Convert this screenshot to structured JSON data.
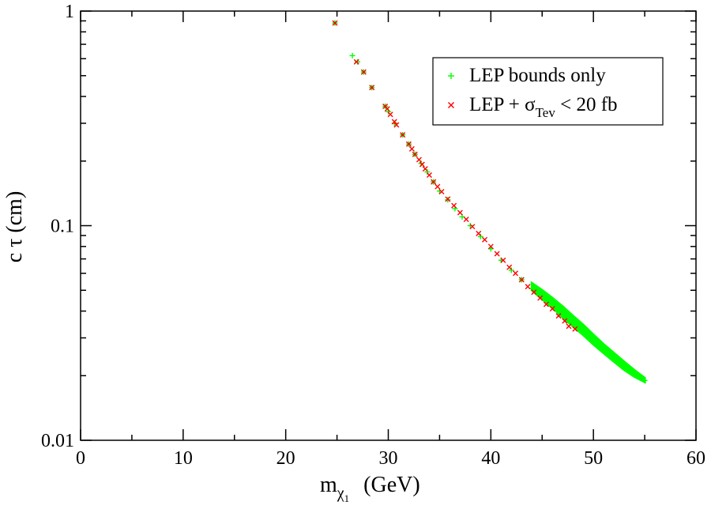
{
  "chart_data": {
    "type": "scatter",
    "title": "",
    "xlabel": {
      "symbol": "m",
      "sub": "χ",
      "subsub": "1",
      "units": "(GeV)"
    },
    "ylabel": "c τ  (cm)",
    "xlim": [
      0,
      60
    ],
    "ylim": [
      0.01,
      1
    ],
    "yscale": "log",
    "x_ticks": [
      0,
      10,
      20,
      30,
      40,
      50,
      60
    ],
    "x_tick_labels": [
      "0",
      "10",
      "20",
      "30",
      "40",
      "50",
      "60"
    ],
    "y_ticks": [
      0.01,
      0.1,
      1
    ],
    "y_tick_labels": [
      "0.01",
      "0.1",
      "1"
    ],
    "legend_position": "top-right",
    "colors": {
      "lep": "#00ff00",
      "tev": "#ff0000",
      "tev_stroke": "#8b1a1a"
    },
    "series": [
      {
        "name": "LEP bounds only",
        "marker": "plus",
        "color": "#00ff00",
        "points": [
          [
            24.8,
            0.88
          ],
          [
            26.5,
            0.62
          ],
          [
            27.0,
            0.58
          ],
          [
            27.6,
            0.52
          ],
          [
            28.4,
            0.44
          ],
          [
            29.7,
            0.36
          ],
          [
            30.0,
            0.34
          ],
          [
            30.6,
            0.3
          ],
          [
            31.4,
            0.265
          ],
          [
            32.0,
            0.24
          ],
          [
            32.6,
            0.215
          ],
          [
            33.2,
            0.195
          ],
          [
            33.8,
            0.178
          ],
          [
            34.4,
            0.16
          ],
          [
            35.0,
            0.145
          ],
          [
            35.8,
            0.132
          ],
          [
            36.5,
            0.12
          ],
          [
            37.2,
            0.11
          ],
          [
            38.0,
            0.1
          ],
          [
            39.0,
            0.089
          ],
          [
            40.0,
            0.078
          ],
          [
            41.0,
            0.069
          ],
          [
            42.0,
            0.062
          ],
          [
            43.0,
            0.056
          ],
          [
            44.0,
            0.051
          ],
          [
            45.0,
            0.046
          ],
          [
            46.0,
            0.042
          ],
          [
            47.0,
            0.038
          ],
          [
            48.0,
            0.035
          ],
          [
            49.0,
            0.032
          ],
          [
            50.0,
            0.029
          ],
          [
            51.0,
            0.0265
          ],
          [
            52.0,
            0.0243
          ],
          [
            53.0,
            0.0222
          ],
          [
            54.0,
            0.0204
          ],
          [
            55.0,
            0.019
          ]
        ]
      },
      {
        "name": "LEP + σTev < 20 fb",
        "label_parts": {
          "pre": "LEP + σ",
          "sub": "Tev",
          "post": " < 20 fb"
        },
        "marker": "cross",
        "color": "#ff0000",
        "points": [
          [
            24.8,
            0.88
          ],
          [
            26.9,
            0.58
          ],
          [
            27.6,
            0.52
          ],
          [
            28.4,
            0.44
          ],
          [
            29.7,
            0.36
          ],
          [
            29.9,
            0.35
          ],
          [
            30.2,
            0.33
          ],
          [
            30.6,
            0.305
          ],
          [
            30.8,
            0.295
          ],
          [
            31.4,
            0.265
          ],
          [
            32.0,
            0.24
          ],
          [
            32.3,
            0.228
          ],
          [
            32.6,
            0.215
          ],
          [
            33.0,
            0.203
          ],
          [
            33.3,
            0.193
          ],
          [
            33.6,
            0.184
          ],
          [
            34.0,
            0.172
          ],
          [
            34.4,
            0.16
          ],
          [
            34.8,
            0.152
          ],
          [
            35.2,
            0.144
          ],
          [
            35.8,
            0.133
          ],
          [
            36.4,
            0.124
          ],
          [
            37.0,
            0.115
          ],
          [
            37.6,
            0.107
          ],
          [
            38.2,
            0.099
          ],
          [
            38.8,
            0.092
          ],
          [
            39.4,
            0.086
          ],
          [
            40.0,
            0.08
          ],
          [
            40.6,
            0.074
          ],
          [
            41.2,
            0.069
          ],
          [
            41.8,
            0.064
          ],
          [
            42.4,
            0.06
          ],
          [
            43.0,
            0.056
          ],
          [
            43.6,
            0.052
          ],
          [
            44.2,
            0.049
          ],
          [
            44.8,
            0.046
          ],
          [
            45.4,
            0.043
          ],
          [
            46.0,
            0.041
          ],
          [
            46.6,
            0.038
          ],
          [
            47.2,
            0.036
          ],
          [
            47.6,
            0.034
          ],
          [
            48.2,
            0.033
          ]
        ]
      }
    ],
    "lep_band": {
      "x": [
        44.0,
        45.0,
        46.0,
        47.0,
        48.0,
        49.0,
        50.0,
        51.0,
        52.0,
        53.0,
        54.0,
        55.0
      ],
      "upper": [
        0.054,
        0.05,
        0.046,
        0.042,
        0.038,
        0.0345,
        0.031,
        0.028,
        0.0255,
        0.0232,
        0.0212,
        0.0195
      ],
      "lower": [
        0.05,
        0.0455,
        0.0415,
        0.0375,
        0.034,
        0.031,
        0.028,
        0.0255,
        0.0233,
        0.0213,
        0.0198,
        0.0187
      ]
    }
  }
}
